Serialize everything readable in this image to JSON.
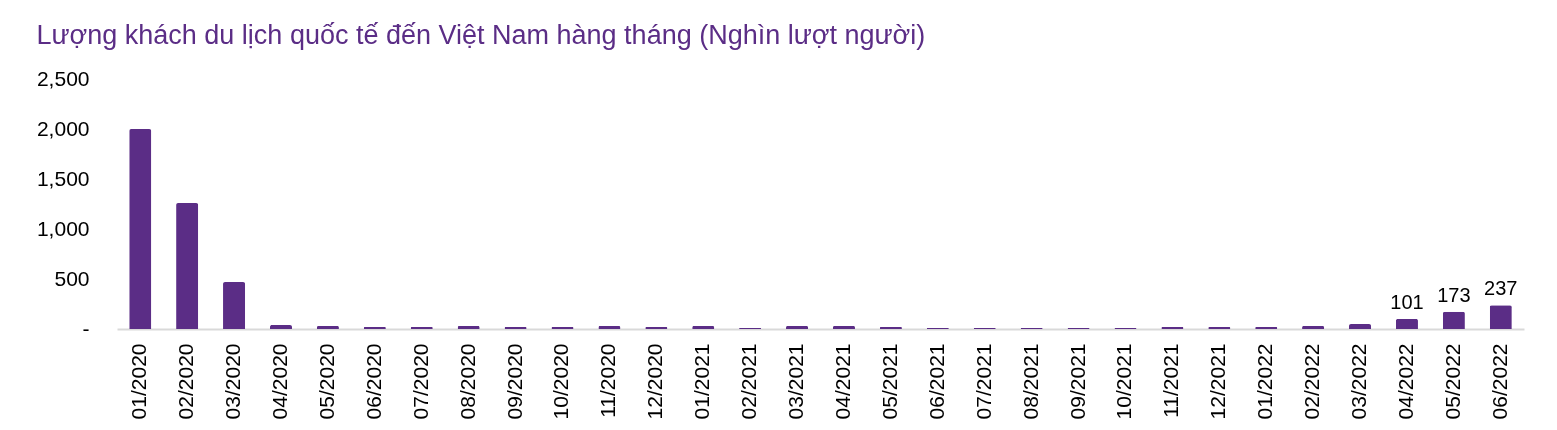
{
  "chart_data": {
    "type": "bar",
    "title": "Lượng khách du lịch quốc tế đến Việt Nam hàng tháng (Nghìn lượt người)",
    "categories": [
      "01/2020",
      "02/2020",
      "03/2020",
      "04/2020",
      "05/2020",
      "06/2020",
      "07/2020",
      "08/2020",
      "09/2020",
      "10/2020",
      "11/2020",
      "12/2020",
      "01/2021",
      "02/2021",
      "03/2021",
      "04/2021",
      "05/2021",
      "06/2021",
      "07/2021",
      "08/2021",
      "09/2021",
      "10/2021",
      "11/2021",
      "12/2021",
      "01/2022",
      "02/2022",
      "03/2022",
      "04/2022",
      "05/2022",
      "06/2022"
    ],
    "values": [
      2000,
      1260,
      470,
      40,
      30,
      20,
      20,
      30,
      20,
      20,
      30,
      20,
      30,
      10,
      30,
      30,
      20,
      10,
      10,
      10,
      10,
      10,
      20,
      20,
      20,
      30,
      50,
      101,
      173,
      237
    ],
    "value_labels": [
      null,
      null,
      null,
      null,
      null,
      null,
      null,
      null,
      null,
      null,
      null,
      null,
      null,
      null,
      null,
      null,
      null,
      null,
      null,
      null,
      null,
      null,
      null,
      null,
      null,
      null,
      null,
      "101",
      "173",
      "237"
    ],
    "color": "#5b2d86",
    "ylim": [
      0,
      2500
    ],
    "yticks": [
      {
        "value": 0,
        "label": "-"
      },
      {
        "value": 500,
        "label": "500"
      },
      {
        "value": 1000,
        "label": "1,000"
      },
      {
        "value": 1500,
        "label": "1,500"
      },
      {
        "value": 2000,
        "label": "2,000"
      },
      {
        "value": 2500,
        "label": "2,500"
      }
    ]
  }
}
